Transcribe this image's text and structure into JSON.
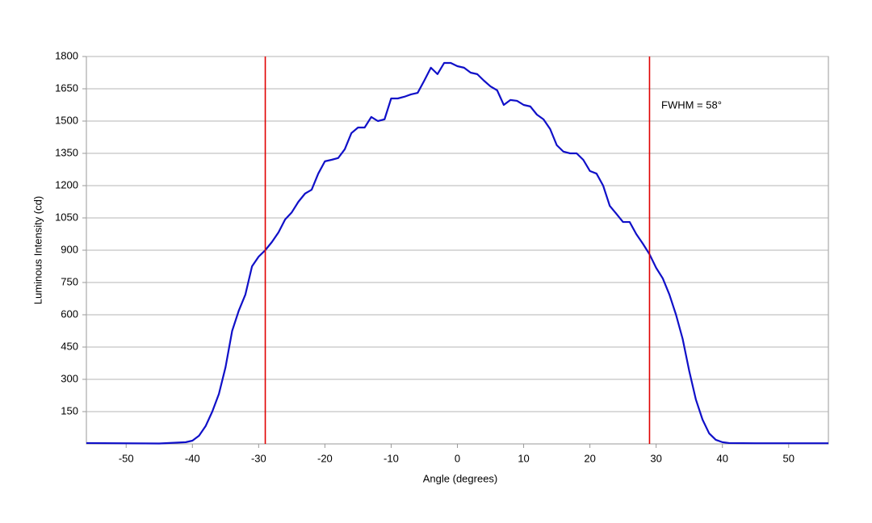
{
  "chart_data": {
    "type": "line",
    "x_label": "Angle (degrees)",
    "y_label": "Luminous Intensity (cd)",
    "annotation": "FWHM = 58°",
    "x": [
      -56,
      -45,
      -41,
      -40,
      -39,
      -38,
      -37,
      -36,
      -35,
      -34,
      -33,
      -32,
      -31,
      -30,
      -29,
      -28,
      -27,
      -26,
      -25,
      -24,
      -23,
      -22,
      -21,
      -20,
      -19,
      -18,
      -17,
      -16,
      -15,
      -14,
      -13,
      -12,
      -11,
      -10,
      -9,
      -8,
      -7,
      -6,
      -5,
      -4,
      -3,
      -2,
      -1,
      0,
      1,
      2,
      3,
      4,
      5,
      6,
      7,
      8,
      9,
      10,
      11,
      12,
      13,
      14,
      15,
      16,
      17,
      18,
      19,
      20,
      21,
      22,
      23,
      24,
      25,
      26,
      27,
      28,
      29,
      30,
      31,
      32,
      33,
      34,
      35,
      36,
      37,
      38,
      39,
      40,
      41,
      45,
      56
    ],
    "series": [
      {
        "color": "#1010c8",
        "values": [
          4,
          2,
          8,
          15,
          38,
          83,
          150,
          232,
          356,
          525,
          619,
          694,
          825,
          870,
          900,
          938,
          983,
          1043,
          1076,
          1125,
          1163,
          1181,
          1256,
          1313,
          1320,
          1328,
          1369,
          1444,
          1470,
          1470,
          1519,
          1500,
          1508,
          1605,
          1605,
          1613,
          1624,
          1631,
          1688,
          1748,
          1718,
          1770,
          1770,
          1755,
          1748,
          1725,
          1718,
          1688,
          1661,
          1643,
          1575,
          1598,
          1594,
          1575,
          1568,
          1530,
          1508,
          1463,
          1388,
          1358,
          1350,
          1350,
          1320,
          1268,
          1256,
          1200,
          1106,
          1069,
          1031,
          1031,
          975,
          930,
          881,
          818,
          769,
          694,
          600,
          488,
          338,
          206,
          113,
          49,
          19,
          8,
          4,
          3,
          3
        ]
      }
    ],
    "vlines": [
      -29,
      29
    ],
    "vline_color": "#e00000",
    "xlim": [
      -56,
      56
    ],
    "xticks": [
      -50,
      -40,
      -30,
      -20,
      -10,
      0,
      10,
      20,
      30,
      40,
      50
    ],
    "ylim": [
      0,
      1800
    ],
    "yticks": [
      150,
      300,
      450,
      600,
      750,
      900,
      1050,
      1200,
      1350,
      1500,
      1650,
      1800
    ],
    "grid": true
  }
}
